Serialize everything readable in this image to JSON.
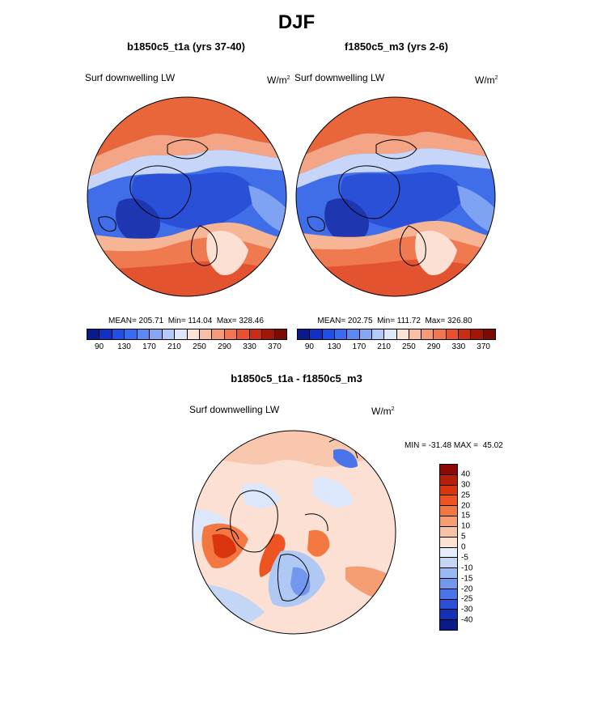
{
  "title": "DJF",
  "panels": [
    {
      "title": "b1850c5_t1a (yrs 37-40)",
      "variable": "Surf downwelling LW",
      "units": "W/m",
      "units_sup": "2",
      "stats": "MEAN= 205.71  Min= 114.04  Max= 328.46"
    },
    {
      "title": "f1850c5_m3 (yrs 2-6)",
      "variable": "Surf downwelling LW",
      "units": "W/m",
      "units_sup": "2",
      "stats": "MEAN= 202.75  Min= 111.72  Max= 326.80"
    }
  ],
  "abs_colorbar": {
    "colors": [
      "#0a1a8c",
      "#1230c4",
      "#1f4fe6",
      "#3a6af0",
      "#5b88f2",
      "#86a8f4",
      "#b3c9f8",
      "#dfe8fb",
      "#fde3d6",
      "#f9bfa4",
      "#f69a78",
      "#f1754f",
      "#e9502e",
      "#cc2b14",
      "#a21507",
      "#7a0a03"
    ],
    "tick_labels": [
      "90",
      "130",
      "170",
      "210",
      "250",
      "290",
      "330",
      "370"
    ]
  },
  "diff_panel": {
    "title": "b1850c5_t1a - f1850c5_m3",
    "variable": "Surf downwelling LW",
    "units": "W/m",
    "units_sup": "2",
    "stats": "MIN = -31.48 MAX =  45.02"
  },
  "diff_colorbar": {
    "colors": [
      "#8c0a05",
      "#b81d0a",
      "#d9350f",
      "#ee5422",
      "#f27740",
      "#f59e73",
      "#f8c2a4",
      "#fde2d2",
      "#e6eefb",
      "#c4d6f6",
      "#9ab8f2",
      "#7198ee",
      "#4a74e8",
      "#2a4fd8",
      "#1530b4",
      "#0a1a86"
    ],
    "tick_labels": [
      "40",
      "30",
      "25",
      "20",
      "15",
      "10",
      "5",
      "0",
      "-5",
      "-10",
      "-15",
      "-20",
      "-25",
      "-30",
      "-40"
    ]
  }
}
